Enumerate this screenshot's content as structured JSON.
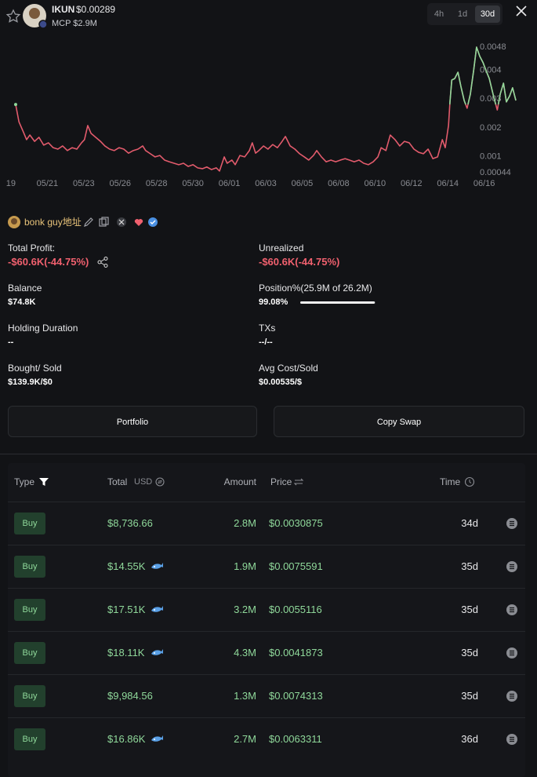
{
  "header": {
    "token": "IKUN",
    "price": "$0.00289",
    "market_cap": "MCP $2.9M",
    "timeframes": [
      "4h",
      "1d",
      "30d"
    ],
    "active_timeframe": 2
  },
  "chart_data": {
    "type": "line",
    "color": "#e25b6c",
    "highlight_color": "#8fd89a",
    "x": [
      0.13,
      0.22,
      0.34,
      0.43,
      0.52,
      0.65,
      0.77,
      0.9,
      1.03,
      1.16,
      1.29,
      1.42,
      1.55,
      1.68,
      1.81,
      1.94,
      2.02,
      2.11,
      2.2,
      2.33,
      2.46,
      2.58,
      2.71,
      2.84,
      2.97,
      3.1,
      3.23,
      3.36,
      3.49,
      3.62,
      3.7,
      3.83,
      3.96,
      4.09,
      4.22,
      4.35,
      4.48,
      4.61,
      4.74,
      4.87,
      5.0,
      5.13,
      5.26,
      5.38,
      5.51,
      5.64,
      5.73,
      5.86,
      5.94,
      6.07,
      6.16,
      6.29,
      6.42,
      6.55,
      6.63,
      6.72,
      6.81,
      6.94,
      7.06,
      7.19,
      7.32,
      7.45,
      7.54,
      7.67,
      7.8,
      7.93,
      8.06,
      8.18,
      8.31,
      8.4,
      8.53,
      8.66,
      8.79,
      8.92,
      9.05,
      9.18,
      9.3,
      9.43,
      9.56,
      9.69,
      9.82,
      9.95,
      10.08,
      10.17,
      10.3,
      10.42,
      10.55,
      10.68,
      10.81,
      10.94,
      11.07,
      11.2,
      11.33,
      11.46,
      11.59,
      11.72,
      11.85,
      11.93,
      12.02,
      12.06,
      12.11,
      12.19,
      12.28,
      12.36,
      12.45,
      12.53,
      12.62,
      12.71,
      12.79,
      12.88,
      12.97,
      13.05,
      13.14,
      13.27,
      13.36,
      13.44,
      13.53,
      13.61,
      13.7,
      13.78,
      13.87
    ],
    "values": [
      0.00278,
      0.00218,
      0.00183,
      0.00156,
      0.00172,
      0.0015,
      0.00164,
      0.00137,
      0.00145,
      0.00128,
      0.00123,
      0.00134,
      0.00118,
      0.00128,
      0.00123,
      0.00145,
      0.00156,
      0.00205,
      0.00178,
      0.00164,
      0.0015,
      0.00134,
      0.00123,
      0.00118,
      0.00128,
      0.00123,
      0.00109,
      0.00118,
      0.00123,
      0.00134,
      0.00118,
      0.00107,
      0.00096,
      0.00101,
      0.00085,
      0.00079,
      0.00074,
      0.00069,
      0.00074,
      0.00063,
      0.00069,
      0.00058,
      0.00055,
      0.00061,
      0.00052,
      0.00058,
      0.00047,
      0.00096,
      0.00074,
      0.00085,
      0.00069,
      0.00101,
      0.00096,
      0.00118,
      0.00145,
      0.00109,
      0.00118,
      0.00134,
      0.00123,
      0.00139,
      0.00128,
      0.0015,
      0.00167,
      0.00134,
      0.00123,
      0.00107,
      0.00096,
      0.00085,
      0.00101,
      0.00118,
      0.00096,
      0.00079,
      0.00085,
      0.00079,
      0.00085,
      0.0009,
      0.00085,
      0.00079,
      0.00085,
      0.00074,
      0.00069,
      0.00079,
      0.00096,
      0.00128,
      0.00118,
      0.00172,
      0.00156,
      0.00134,
      0.0015,
      0.00145,
      0.00123,
      0.00112,
      0.00107,
      0.00123,
      0.0009,
      0.00096,
      0.00156,
      0.00128,
      0.00205,
      0.00287,
      0.00363,
      0.00368,
      0.0039,
      0.00341,
      0.00292,
      0.00265,
      0.00314,
      0.00396,
      0.00477,
      0.00445,
      0.00423,
      0.00396,
      0.00368,
      0.003,
      0.00259,
      0.00314,
      0.00352,
      0.00287,
      0.00308,
      0.00336,
      0.00292
    ],
    "xlim": [
      -0.3,
      14.02
    ],
    "xticks": [
      {
        "value": 0,
        "label": "19"
      },
      {
        "value": 1,
        "label": "05/21"
      },
      {
        "value": 2,
        "label": "05/23"
      },
      {
        "value": 3,
        "label": "05/26"
      },
      {
        "value": 4,
        "label": "05/28"
      },
      {
        "value": 5,
        "label": "05/30"
      },
      {
        "value": 6,
        "label": "06/01"
      },
      {
        "value": 7,
        "label": "06/03"
      },
      {
        "value": 8,
        "label": "06/05"
      },
      {
        "value": 9,
        "label": "06/08"
      },
      {
        "value": 10,
        "label": "06/10"
      },
      {
        "value": 11,
        "label": "06/12"
      },
      {
        "value": 12,
        "label": "06/14"
      },
      {
        "value": 13,
        "label": "06/16"
      }
    ],
    "ylim": [
      0.00044,
      0.0048
    ],
    "yticks": [
      0.0048,
      0.004,
      0.003,
      0.002,
      0.001,
      0.00044
    ]
  },
  "wallet": {
    "name": "bonk guy地址"
  },
  "stats": [
    {
      "label": "Total Profit:",
      "value": "-$60.6K(-44.75%)",
      "tone": "loss",
      "share": true
    },
    {
      "label": "Unrealized",
      "value": "-$60.6K(-44.75%)",
      "tone": "loss"
    },
    {
      "label": "Balance",
      "value": "$74.8K"
    },
    {
      "label": "Position%(25.9M of 26.2M)",
      "value": "99.08%",
      "bar": 99.08
    },
    {
      "label": "Holding Duration",
      "value": "--"
    },
    {
      "label": "TXs",
      "value": "--/--"
    },
    {
      "label": "Bought/ Sold",
      "value": "$139.9K/$0"
    },
    {
      "label": "Avg Cost/Sold",
      "value": "$0.00535/$"
    }
  ],
  "buttons": [
    "Portfolio",
    "Copy Swap"
  ],
  "table": {
    "columns": [
      "Type",
      "Total",
      "Amount",
      "Price",
      "Time"
    ],
    "unit": "USD",
    "rows": [
      {
        "type": "Buy",
        "total": "$8,736.66",
        "whale": false,
        "amount": "2.8M",
        "price": "$0.0030875",
        "time": "34d"
      },
      {
        "type": "Buy",
        "total": "$14.55K",
        "whale": true,
        "amount": "1.9M",
        "price": "$0.0075591",
        "time": "35d"
      },
      {
        "type": "Buy",
        "total": "$17.51K",
        "whale": true,
        "amount": "3.2M",
        "price": "$0.0055116",
        "time": "35d"
      },
      {
        "type": "Buy",
        "total": "$18.11K",
        "whale": true,
        "amount": "4.3M",
        "price": "$0.0041873",
        "time": "35d"
      },
      {
        "type": "Buy",
        "total": "$9,984.56",
        "whale": false,
        "amount": "1.3M",
        "price": "$0.0074313",
        "time": "35d"
      },
      {
        "type": "Buy",
        "total": "$16.86K",
        "whale": true,
        "amount": "2.7M",
        "price": "$0.0063311",
        "time": "36d"
      }
    ]
  }
}
